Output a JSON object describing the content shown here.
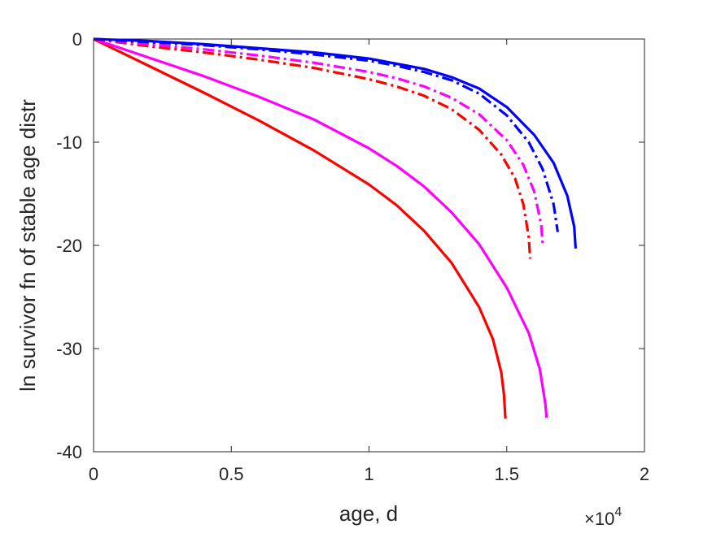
{
  "chart_data": {
    "type": "line",
    "title": "",
    "xlabel": "age, d",
    "ylabel": "ln survivor fn of stable age distr",
    "x_exponent_label": "×10",
    "x_exponent_power": "4",
    "xlim": [
      0,
      20000
    ],
    "ylim": [
      -40,
      0
    ],
    "x_ticks": [
      0,
      5000,
      10000,
      15000,
      20000
    ],
    "x_tick_labels": [
      "0",
      "0.5",
      "1",
      "1.5",
      "2"
    ],
    "y_ticks": [
      0,
      -10,
      -20,
      -30,
      -40
    ],
    "y_tick_labels": [
      "0",
      "-10",
      "-20",
      "-30",
      "-40"
    ],
    "grid": false,
    "legend": "none",
    "series": [
      {
        "color": "#ff0000",
        "style": "solid",
        "x": [
          0,
          2000,
          4000,
          6000,
          8000,
          10000,
          11000,
          12000,
          13000,
          14000,
          14500,
          14800,
          14900,
          14950
        ],
        "y": [
          0,
          -2.6,
          -5.2,
          -7.9,
          -10.8,
          -14.1,
          -16.1,
          -18.6,
          -21.7,
          -26.0,
          -29.1,
          -32.3,
          -34.5,
          -36.8
        ]
      },
      {
        "color": "#ff00ff",
        "style": "solid",
        "x": [
          0,
          2000,
          4000,
          6000,
          8000,
          10000,
          11000,
          12000,
          13000,
          14000,
          15000,
          15800,
          16200,
          16400,
          16450
        ],
        "y": [
          0,
          -1.8,
          -3.6,
          -5.6,
          -7.8,
          -10.6,
          -12.3,
          -14.3,
          -16.8,
          -19.9,
          -24.1,
          -28.5,
          -32.0,
          -35.3,
          -36.7
        ]
      },
      {
        "color": "#ff0000",
        "style": "dashdot",
        "x": [
          0,
          2000,
          4000,
          6000,
          8000,
          10000,
          11000,
          12000,
          13000,
          14000,
          14800,
          15300,
          15600,
          15800,
          15850
        ],
        "y": [
          0,
          -0.7,
          -1.3,
          -2.0,
          -2.8,
          -3.9,
          -4.6,
          -5.5,
          -6.8,
          -8.8,
          -11.2,
          -13.5,
          -16.0,
          -19.2,
          -21.3
        ]
      },
      {
        "color": "#ff00ff",
        "style": "dashdot",
        "x": [
          0,
          2000,
          4000,
          6000,
          8000,
          10000,
          11000,
          12000,
          13000,
          14000,
          15000,
          15600,
          16000,
          16250,
          16300
        ],
        "y": [
          0,
          -0.5,
          -1.0,
          -1.6,
          -2.3,
          -3.2,
          -3.8,
          -4.6,
          -5.7,
          -7.3,
          -9.8,
          -12.2,
          -14.8,
          -18.0,
          -19.8
        ]
      },
      {
        "color": "#0000ff",
        "style": "dashdot",
        "x": [
          0,
          2000,
          4000,
          6000,
          8000,
          10000,
          11000,
          12000,
          13000,
          14000,
          15000,
          15800,
          16300,
          16700,
          16850
        ],
        "y": [
          0,
          -0.3,
          -0.6,
          -1.0,
          -1.5,
          -2.1,
          -2.6,
          -3.2,
          -4.0,
          -5.3,
          -7.4,
          -10.0,
          -12.6,
          -16.0,
          -18.7
        ]
      },
      {
        "color": "#0000ff",
        "style": "solid",
        "x": [
          0,
          2000,
          4000,
          6000,
          8000,
          10000,
          11000,
          12000,
          13000,
          14000,
          15000,
          16000,
          16700,
          17200,
          17450,
          17500
        ],
        "y": [
          0,
          -0.2,
          -0.5,
          -0.9,
          -1.3,
          -1.9,
          -2.4,
          -2.9,
          -3.7,
          -4.8,
          -6.6,
          -9.3,
          -12.0,
          -15.2,
          -18.2,
          -20.3
        ]
      }
    ]
  }
}
